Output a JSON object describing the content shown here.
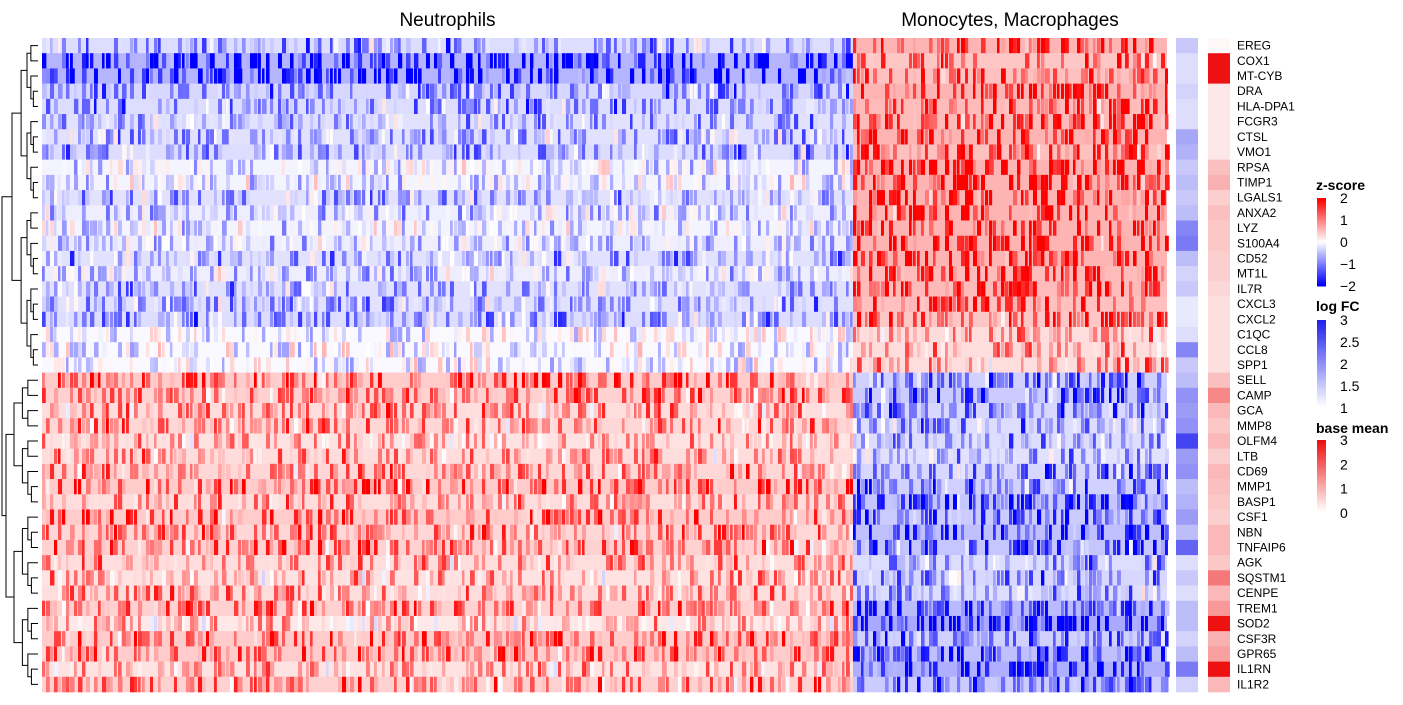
{
  "chart_data": {
    "type": "heatmap",
    "title": "",
    "column_groups": [
      {
        "name": "Neutrophils"
      },
      {
        "name": "Monocytes, Macrophages"
      }
    ],
    "rows": [
      "EREG",
      "COX1",
      "MT-CYB",
      "DRA",
      "HLA-DPA1",
      "FCGR3",
      "CTSL",
      "VMO1",
      "RPSA",
      "TIMP1",
      "LGALS1",
      "ANXA2",
      "LYZ",
      "S100A4",
      "CD52",
      "MT1L",
      "IL7R",
      "CXCL3",
      "CXCL2",
      "C1QC",
      "CCL8",
      "SPP1",
      "SELL",
      "CAMP",
      "GCA",
      "MMP8",
      "OLFM4",
      "LTB",
      "CD69",
      "MMP1",
      "BASP1",
      "CSF1",
      "NBN",
      "TNFAIP6",
      "AGK",
      "SQSTM1",
      "CENPE",
      "TREM1",
      "SOD2",
      "CSF3R",
      "GPR65",
      "IL1RN",
      "IL1R2"
    ],
    "neutrophil_mean_z": [
      -0.6,
      -1.3,
      -1.3,
      -0.7,
      -0.6,
      -0.5,
      -0.5,
      -0.6,
      -0.2,
      -0.2,
      -0.5,
      -0.3,
      -0.2,
      -0.3,
      -0.5,
      -0.3,
      -0.5,
      -0.5,
      -0.6,
      -0.1,
      -0.1,
      -0.1,
      0.9,
      0.8,
      0.6,
      0.7,
      0.5,
      0.6,
      0.7,
      0.9,
      0.6,
      0.9,
      0.7,
      0.8,
      0.6,
      0.5,
      0.6,
      0.8,
      0.4,
      0.9,
      0.9,
      0.5,
      0.8
    ],
    "monocyte_mean_z": [
      1.3,
      1.0,
      1.1,
      1.3,
      1.2,
      1.2,
      1.3,
      1.1,
      1.3,
      1.3,
      1.3,
      1.3,
      1.3,
      1.3,
      1.3,
      1.2,
      1.2,
      1.1,
      1.0,
      0.6,
      0.6,
      0.6,
      -0.8,
      -0.9,
      -0.7,
      -0.6,
      -0.6,
      -0.5,
      -0.7,
      -0.8,
      -1.0,
      -0.9,
      -1.1,
      -1.0,
      -0.6,
      -0.7,
      -0.6,
      -1.2,
      -1.5,
      -0.8,
      -1.1,
      -1.4,
      -0.9
    ],
    "log_fc": [
      1.5,
      1.3,
      1.3,
      1.4,
      1.3,
      1.3,
      1.8,
      1.7,
      1.5,
      1.6,
      1.5,
      1.6,
      2.1,
      2.2,
      1.6,
      1.4,
      1.5,
      1.2,
      1.2,
      1.3,
      2.1,
      1.5,
      1.6,
      2.0,
      1.9,
      2.0,
      2.7,
      1.9,
      2.0,
      1.6,
      1.7,
      1.9,
      1.6,
      2.4,
      1.3,
      1.5,
      1.3,
      1.6,
      1.6,
      1.4,
      1.6,
      2.2,
      1.4
    ],
    "base_mean": [
      0.1,
      3.0,
      3.0,
      0.3,
      0.3,
      0.3,
      0.3,
      0.3,
      0.8,
      1.0,
      0.6,
      0.8,
      0.7,
      0.7,
      0.6,
      0.6,
      0.5,
      0.4,
      0.4,
      0.4,
      0.4,
      0.4,
      0.8,
      1.5,
      0.9,
      0.7,
      0.9,
      0.6,
      0.9,
      0.8,
      0.7,
      0.6,
      0.9,
      0.9,
      0.7,
      1.7,
      0.9,
      1.3,
      3.0,
      1.0,
      1.2,
      3.0,
      0.9
    ],
    "legends": [
      {
        "title": "z-score",
        "ticks": [
          "2",
          "1",
          "0",
          "−1",
          "−2"
        ],
        "range": [
          -2,
          2
        ],
        "colors": [
          "#0000ff",
          "#ffffff",
          "#ff0000"
        ]
      },
      {
        "title": "log FC",
        "ticks": [
          "3",
          "2.5",
          "2",
          "1.5",
          "1"
        ],
        "range": [
          1,
          3
        ],
        "colors": [
          "#ffffff",
          "#2222ee"
        ]
      },
      {
        "title": "base mean",
        "ticks": [
          "3",
          "2",
          "1",
          "0"
        ],
        "range": [
          0,
          3
        ],
        "colors": [
          "#ffffff",
          "#ee1111"
        ]
      }
    ],
    "row_dendrogram": true,
    "legend_position": "right"
  }
}
